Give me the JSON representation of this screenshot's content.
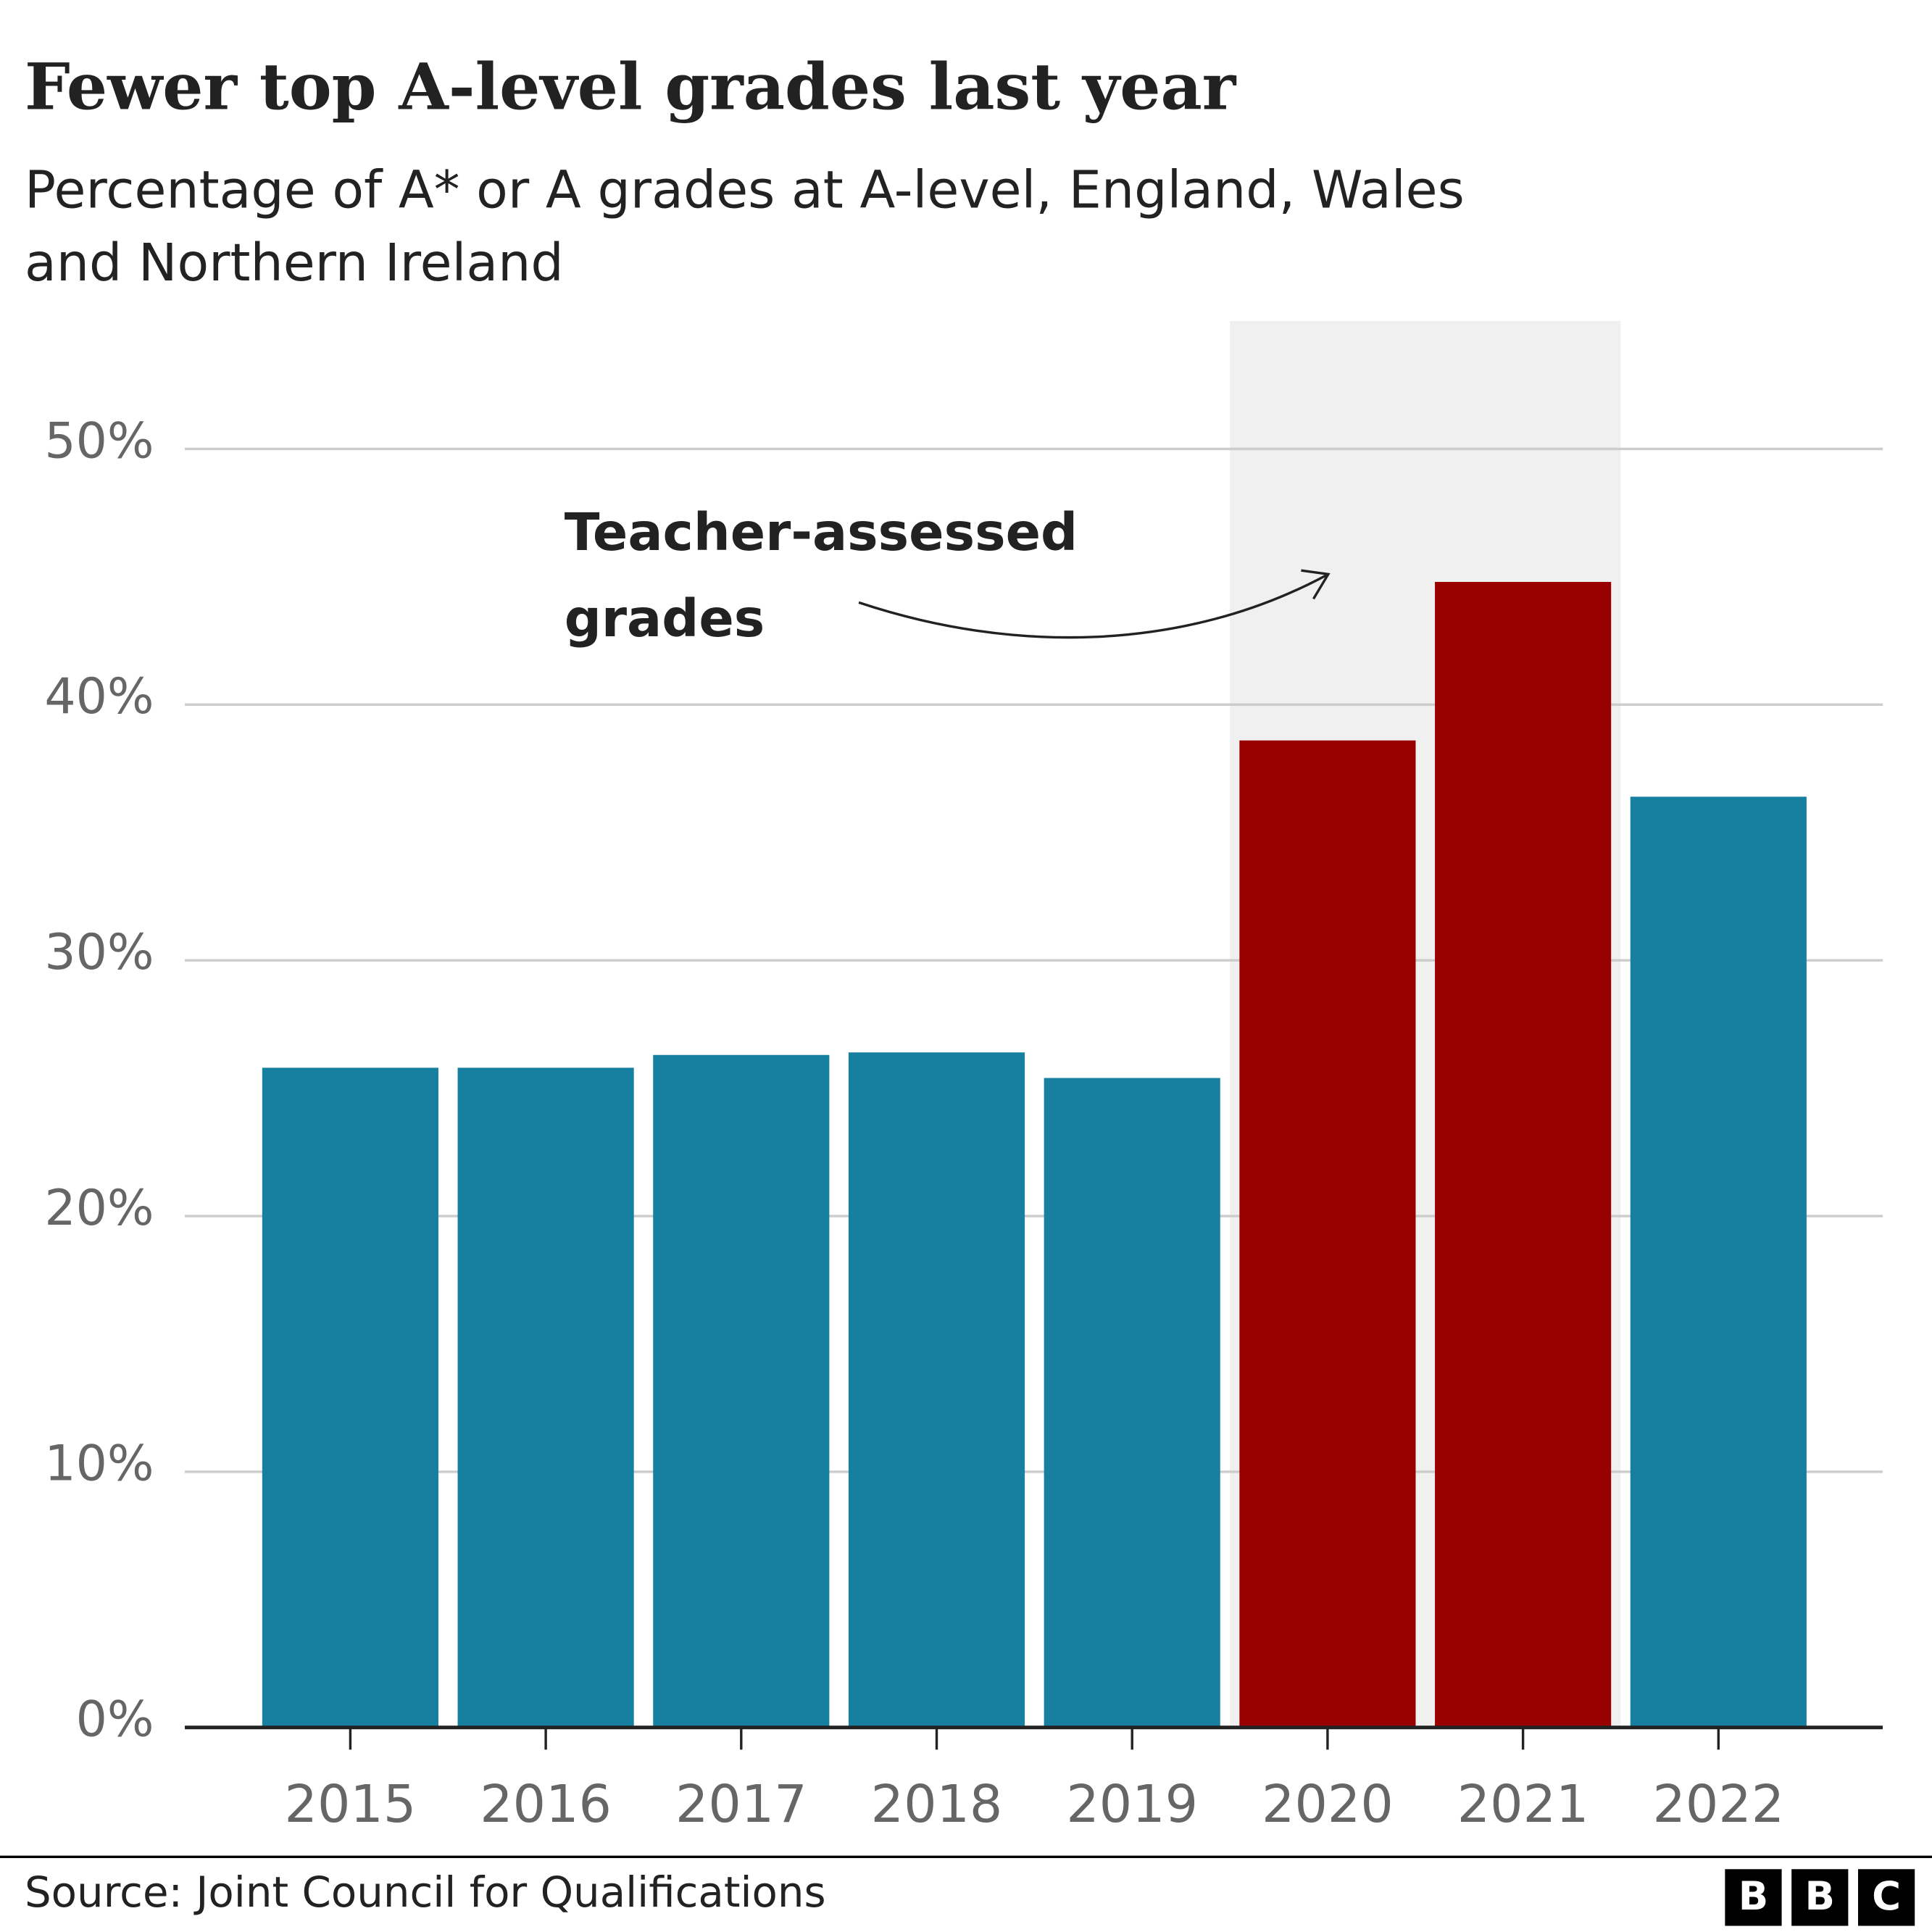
{
  "chart_data": {
    "type": "bar",
    "title": "Fewer top A-level grades last year",
    "subtitle_lines": [
      "Percentage of A* or A grades at A-level, England, Wales",
      "and Northern Ireland"
    ],
    "categories": [
      "2015",
      "2016",
      "2017",
      "2018",
      "2019",
      "2020",
      "2021",
      "2022"
    ],
    "values": [
      25.8,
      25.8,
      26.3,
      26.4,
      25.4,
      38.6,
      44.8,
      36.4
    ],
    "colors": [
      "#1780a1",
      "#1780a1",
      "#1780a1",
      "#1780a1",
      "#1780a1",
      "#990000",
      "#990000",
      "#1780a1"
    ],
    "ylim": [
      0,
      55
    ],
    "yticks": [
      {
        "value": 0,
        "label": "0%"
      },
      {
        "value": 10,
        "label": "10%"
      },
      {
        "value": 20,
        "label": "20%"
      },
      {
        "value": 30,
        "label": "30%"
      },
      {
        "value": 40,
        "label": "40%"
      },
      {
        "value": 50,
        "label": "50%"
      }
    ],
    "grid": true,
    "annotation": {
      "text_lines": [
        "Teacher-assessed",
        "grades"
      ],
      "span": [
        "2020",
        "2021"
      ],
      "shade_color": "#f0f0f0"
    },
    "source": "Source: Joint Council for Qualifications",
    "logo": [
      "B",
      "B",
      "C"
    ]
  }
}
